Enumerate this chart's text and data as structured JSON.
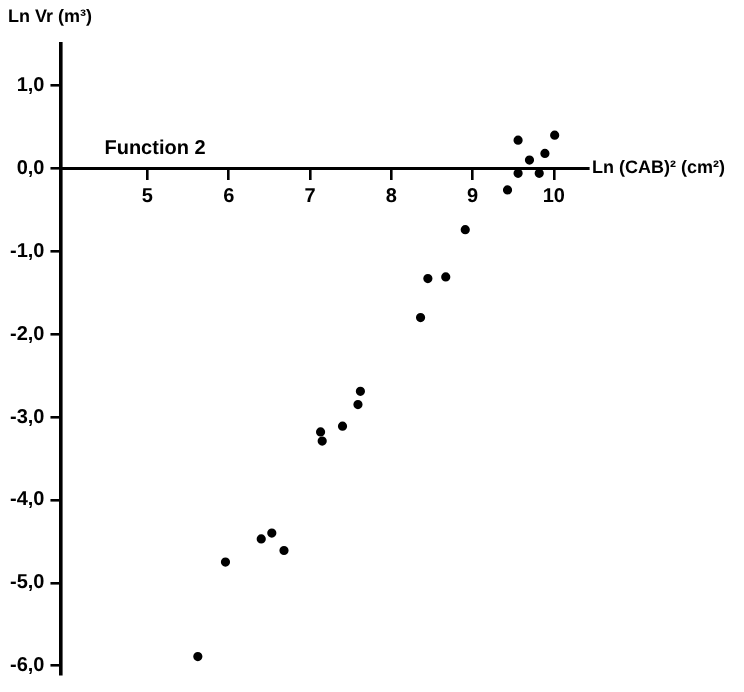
{
  "chart_data": {
    "type": "scatter",
    "xlabel": "Ln (CAB)² (cm²)",
    "ylabel": "Ln Vr (m³)",
    "annotations": [
      "Function 2"
    ],
    "x": [
      9.56,
      10.01,
      9.7,
      9.89,
      9.56,
      9.82,
      9.43,
      8.91,
      8.45,
      8.67,
      8.36,
      7.62,
      7.59,
      7.4,
      7.13,
      7.15,
      6.4,
      6.53,
      6.68,
      5.96,
      5.62
    ],
    "series": [
      {
        "color": "#000000",
        "values": [
          0.34,
          0.4,
          0.1,
          0.18,
          -0.06,
          -0.06,
          -0.26,
          -0.74,
          -1.33,
          -1.31,
          -1.8,
          -2.69,
          -2.85,
          -3.11,
          -3.18,
          -3.29,
          -4.47,
          -4.4,
          -4.61,
          -4.75,
          -5.89
        ]
      }
    ],
    "xlim": [
      3.93,
      10.42
    ],
    "xticks": [
      5,
      6,
      7,
      8,
      9,
      10
    ],
    "ylim": [
      -6.1,
      1.5
    ],
    "yticks": [
      {
        "value": 1,
        "label": "1,0"
      },
      {
        "value": 0,
        "label": "0,0"
      },
      {
        "value": -1,
        "label": "-1,0"
      },
      {
        "value": -2,
        "label": "-2,0"
      },
      {
        "value": -3,
        "label": "-3,0"
      },
      {
        "value": -4,
        "label": "-4,0"
      },
      {
        "value": -5,
        "label": "-5,0"
      },
      {
        "value": -6,
        "label": "-6,0"
      }
    ],
    "grid": false,
    "legend": false,
    "marker": "circle"
  }
}
